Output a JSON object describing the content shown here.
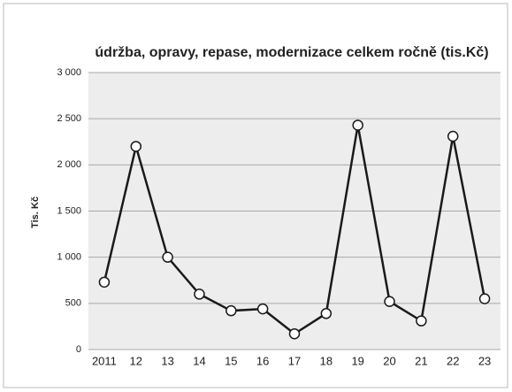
{
  "chart_data": {
    "type": "line",
    "title": "údržba, opravy, repase, modernizace celkem ročně  (tis.Kč)",
    "y_label": "Tis. Kč",
    "categories": [
      "2011",
      "12",
      "13",
      "14",
      "15",
      "16",
      "17",
      "18",
      "19",
      "20",
      "21",
      "22",
      "23"
    ],
    "values": [
      730,
      2200,
      1000,
      600,
      420,
      440,
      170,
      390,
      2430,
      520,
      310,
      2310,
      550
    ],
    "color": "#1a1a1a",
    "ylim": [
      0,
      3000
    ],
    "yticks": [
      0,
      500,
      {
        "value": 1000,
        "label": "1 000"
      },
      {
        "value": 1500,
        "label": "1 500"
      },
      {
        "value": 2000,
        "label": "2 000"
      },
      {
        "value": 2500,
        "label": "2 500"
      },
      {
        "value": 3000,
        "label": "3 000"
      }
    ],
    "grid": true
  }
}
